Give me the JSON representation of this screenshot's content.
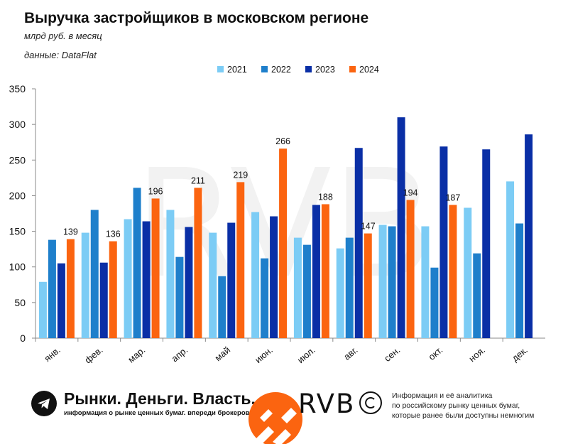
{
  "header": {
    "title": "Выручка застройщиков в московском регионе",
    "subtitle": "млрд руб. в месяц",
    "source": "данные: DataFlat"
  },
  "chart_data": {
    "type": "bar",
    "categories": [
      "янв.",
      "фев.",
      "мар.",
      "апр.",
      "май",
      "июн.",
      "июл.",
      "авг.",
      "сен.",
      "окт.",
      "ноя.",
      "дек."
    ],
    "series": [
      {
        "name": "2021",
        "color": "#7cccf5",
        "values": [
          79,
          148,
          167,
          180,
          148,
          177,
          141,
          126,
          159,
          157,
          183,
          220
        ]
      },
      {
        "name": "2022",
        "color": "#1e7fcb",
        "values": [
          138,
          180,
          211,
          114,
          87,
          112,
          131,
          141,
          157,
          99,
          119,
          161
        ]
      },
      {
        "name": "2023",
        "color": "#0a2fa6",
        "values": [
          105,
          106,
          164,
          156,
          162,
          171,
          187,
          267,
          310,
          269,
          265,
          286
        ]
      },
      {
        "name": "2024",
        "color": "#fb6410",
        "values": [
          139,
          136,
          196,
          211,
          219,
          266,
          188,
          147,
          194,
          187,
          null,
          null
        ]
      }
    ],
    "data_labels_series": "2024",
    "ylim": [
      0,
      350
    ],
    "yticks": [
      0,
      50,
      100,
      150,
      200,
      250,
      300,
      350
    ],
    "xlabel": "",
    "ylabel": "",
    "legend": "top-center",
    "grid": false,
    "watermark": "RVB"
  },
  "footer": {
    "brand": "Рынки. Деньги. Власть.",
    "brand_sub": "информация о рынке ценных бумаг. впереди брокеров и банков.",
    "logo_text": "RVB",
    "info_lines": [
      "Информация и её аналитика",
      "по российскому рынку ценных бумаг,",
      "которые ранее были доступны немногим"
    ],
    "icons": [
      "telegram-icon",
      "copyright-icon"
    ]
  }
}
